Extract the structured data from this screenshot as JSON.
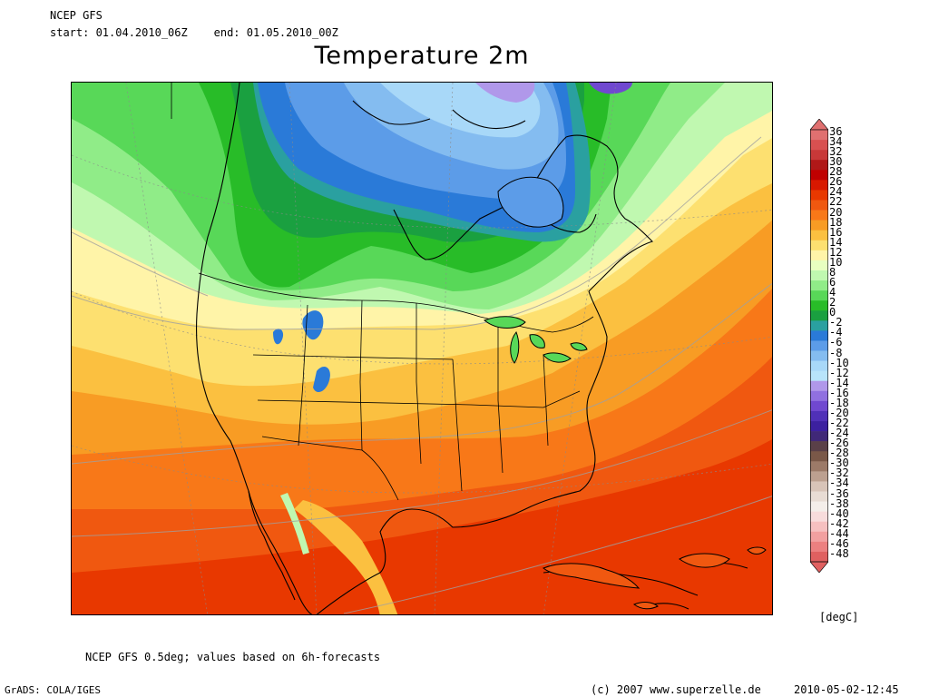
{
  "header": {
    "source": "NCEP GFS",
    "period": "start: 01.04.2010_06Z    end: 01.05.2010_00Z",
    "title": "Temperature 2m"
  },
  "legend": {
    "labels": [
      "36",
      "34",
      "32",
      "30",
      "28",
      "26",
      "24",
      "22",
      "20",
      "18",
      "16",
      "14",
      "12",
      "10",
      "8",
      "6",
      "4",
      "2",
      "0",
      "-2",
      "-4",
      "-6",
      "-8",
      "-10",
      "-12",
      "-14",
      "-16",
      "-18",
      "-20",
      "-22",
      "-24",
      "-26",
      "-28",
      "-30",
      "-32",
      "-34",
      "-36",
      "-38",
      "-40",
      "-42",
      "-44",
      "-46",
      "-48"
    ],
    "colors": [
      "#e07070",
      "#d85050",
      "#c83838",
      "#b01818",
      "#c00000",
      "#d81800",
      "#e83800",
      "#f05810",
      "#f87818",
      "#f89c24",
      "#fbc040",
      "#fde070",
      "#fff4a8",
      "#e8ffc0",
      "#c0f8b0",
      "#90ec88",
      "#58d858",
      "#28bc28",
      "#1aa040",
      "#2aa0a0",
      "#2a7ad8",
      "#5c9ce8",
      "#84bcf0",
      "#a8d8f8",
      "#b8e4fa",
      "#b098ea",
      "#9070e0",
      "#7048d0",
      "#5030b8",
      "#3c20a0",
      "#402878",
      "#5a4048",
      "#7a5848",
      "#9c7a68",
      "#bca090",
      "#d8c4b8",
      "#e8dcd4",
      "#f4eeea",
      "#f8dcdc",
      "#f6c0c0",
      "#f2a0a0",
      "#ec8080",
      "#e06060"
    ],
    "units": "[degC]"
  },
  "footer": {
    "note": "NCEP GFS 0.5deg; values based on 6h-forecasts",
    "grads": "GrADS: COLA/IGES",
    "copyright": "(c) 2007 www.superzelle.de",
    "timestamp": "2010-05-02-12:45"
  }
}
